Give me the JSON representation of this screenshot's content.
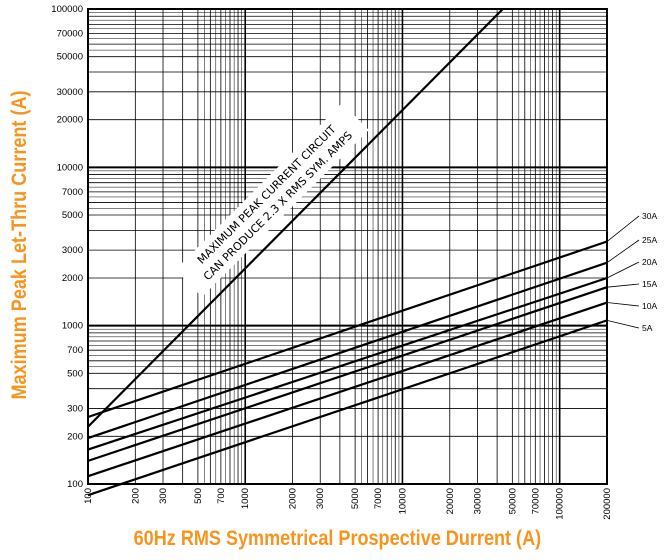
{
  "chart_data": {
    "type": "line",
    "xscale": "log",
    "yscale": "log",
    "xlim": [
      100,
      200000
    ],
    "ylim": [
      100,
      100000
    ],
    "grid": true,
    "xlabel": "60Hz RMS Symmetrical Prospective Durrent (A)",
    "ylabel": "Maximum Peak Let-Thru Current (A)",
    "x_ticks": [
      100,
      200,
      300,
      500,
      700,
      1000,
      2000,
      3000,
      5000,
      7000,
      10000,
      20000,
      30000,
      50000,
      70000,
      100000,
      200000
    ],
    "x_tick_labels": [
      "100",
      "200",
      "300",
      "500",
      "700",
      "1000",
      "2000",
      "3000",
      "5000",
      "7000",
      "10000",
      "20000",
      "30000",
      "50000",
      "70000",
      "100000",
      "200000"
    ],
    "y_ticks": [
      100,
      200,
      300,
      500,
      700,
      1000,
      2000,
      3000,
      5000,
      7000,
      10000,
      20000,
      30000,
      50000,
      70000,
      100000
    ],
    "y_tick_labels": [
      "100",
      "200",
      "300",
      "500",
      "700",
      "1000",
      "2000",
      "3000",
      "5000",
      "7000",
      "10000",
      "20000",
      "30000",
      "50000",
      "70000",
      "100000"
    ],
    "annotation": [
      "MAXIMUM PEAK CURRENT CIRCUIT",
      "CAN PRODUCE 2.3 X RMS SYM. AMPS"
    ],
    "series": [
      {
        "name": "30A",
        "x": [
          100,
          200000
        ],
        "y": [
          265,
          3400
        ]
      },
      {
        "name": "25A",
        "x": [
          100,
          200000
        ],
        "y": [
          195,
          2500
        ]
      },
      {
        "name": "20A",
        "x": [
          100,
          200000
        ],
        "y": [
          165,
          2000
        ]
      },
      {
        "name": "15A",
        "x": [
          100,
          200000
        ],
        "y": [
          140,
          1750
        ]
      },
      {
        "name": "10A",
        "x": [
          100,
          200000
        ],
        "y": [
          112,
          1400
        ]
      },
      {
        "name": "5A",
        "x": [
          100,
          200000
        ],
        "y": [
          85,
          1080
        ]
      }
    ],
    "peak_line": {
      "x": [
        100,
        43500
      ],
      "y": [
        230,
        100000
      ]
    }
  }
}
